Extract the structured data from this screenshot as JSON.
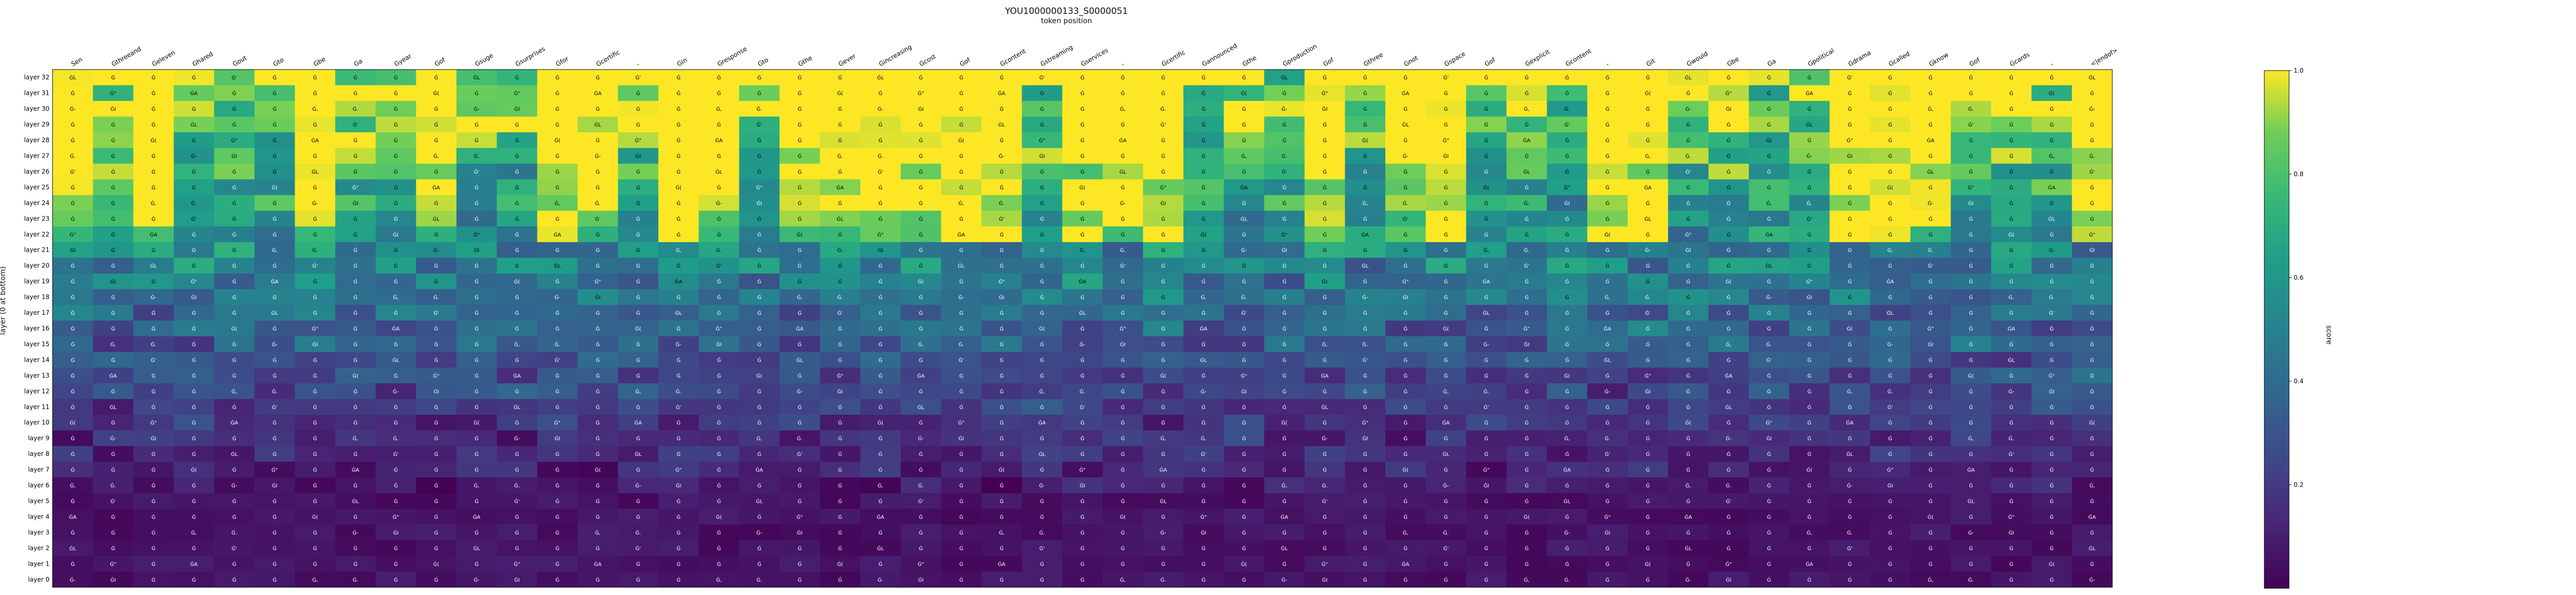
{
  "chart_data": {
    "type": "heatmap",
    "title": "YOU1000000133_S0000051",
    "xlabel": "token position",
    "ylabel": "layer (0 at bottom)",
    "colorbar_label": "score",
    "colorbar_range": [
      0,
      1
    ],
    "colorbar_ticks": [
      "0.2",
      "0.4",
      "0.6",
      "0.8",
      "1.0"
    ],
    "colormap": "viridis",
    "x_tokens": [
      "Sen",
      "Gthreeand",
      "Geleven",
      "Ghared",
      "Gout",
      "Gto",
      "Gbe",
      "Ga",
      "Gyear",
      "Gof",
      "Gsuge",
      "Gsurprises",
      "Gfor",
      "Gcertific",
      "-",
      "Gin",
      "Gresponse",
      "Gto",
      "Gthe",
      "Gever",
      "Gincreasing",
      "Gcost",
      "Gof",
      "Gcontent",
      "Gstreaming",
      "Gservices",
      "-",
      "Gcertific",
      "Gannounced",
      "Gthe",
      "Gproduction",
      "Gof",
      "Gthree",
      "Gnot",
      "Gspace",
      "Gof",
      "Gexplicit",
      "Gcontent",
      "-",
      "Git",
      "Gwould",
      "Gbe",
      "Ga",
      "Gpolitical",
      "Gdrama",
      "Gcalled",
      "Gknow",
      "Gof",
      "Gcards",
      "-",
      "<|endof>"
    ],
    "y_layers": [
      "layer 32",
      "layer 31",
      "layer 30",
      "layer 29",
      "layer 28",
      "layer 27",
      "layer 26",
      "layer 25",
      "layer 24",
      "layer 23",
      "layer 22",
      "layer 21",
      "layer 20",
      "layer 19",
      "layer 18",
      "layer 17",
      "layer 16",
      "layer 15",
      "layer 14",
      "layer 13",
      "layer 12",
      "layer 11",
      "layer 10",
      "layer 9",
      "layer 8",
      "layer 7",
      "layer 6",
      "layer 5",
      "layer 4",
      "layer 3",
      "layer 2",
      "layer 1",
      "layer 0"
    ],
    "cell_glyphs": [
      "ĠL",
      "Ġ",
      "Ġ,",
      "Ġ",
      "Ġ(",
      "Ġ.",
      "Ġ",
      "Ġ",
      "Ġ",
      "Ġ",
      "Ġ\"",
      "Ġ",
      "Ġ'",
      "Ġ",
      "Ġ-",
      "Ġ",
      "ĠA",
      "ĠI",
      "Ġ",
      "Ġ",
      "Ġ",
      "Ġ",
      "Ġ",
      "Ġ",
      "Ġ",
      "Ġ",
      "Ġ",
      "Ġ",
      "Ġ",
      "Ġ"
    ],
    "grid": false,
    "legend": "colorbar-right"
  }
}
